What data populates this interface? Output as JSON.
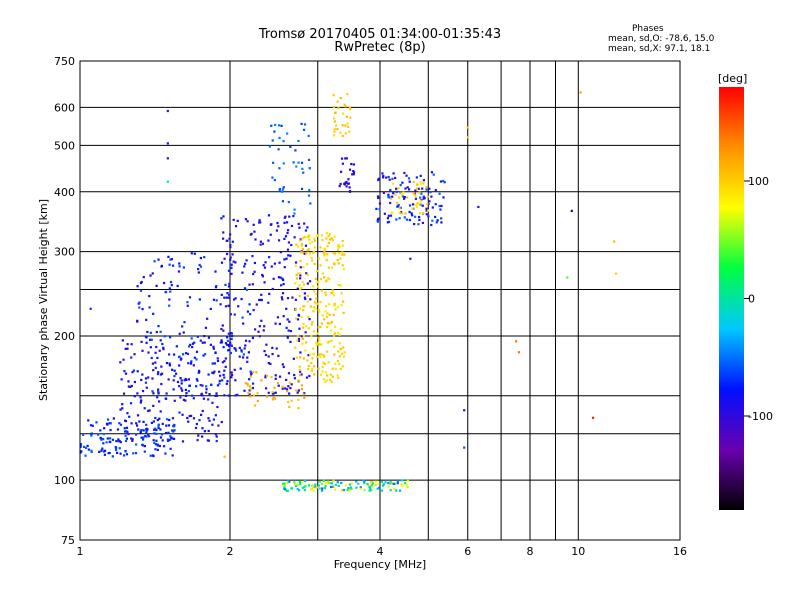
{
  "header": {
    "title_line1": "Tromsø 20170405 01:34:00-01:35:43",
    "title_line2": "RwPretec (8p)"
  },
  "stats": {
    "heading": "Phases",
    "o_line": "mean, sd,O: -78.6, 15.0",
    "x_line": "mean, sd,X:  97.1, 18.1"
  },
  "colorbar": {
    "label": "[deg]",
    "ticks": [
      {
        "value": 100,
        "label": "100"
      },
      {
        "value": 0,
        "label": "0"
      },
      {
        "value": -100,
        "label": "-100"
      }
    ],
    "range": [
      -180,
      180
    ],
    "stops": [
      "#000000",
      "#6a00b0",
      "#0010ff",
      "#00c8ff",
      "#00ff40",
      "#ffff00",
      "#ff9000",
      "#ff0000"
    ]
  },
  "chart_data": {
    "type": "scatter",
    "xlabel": "Frequency [MHz]",
    "ylabel": "Stationary phase Virtual Height [km]",
    "xscale": "log",
    "yscale": "log",
    "xlim": [
      1,
      16
    ],
    "ylim": [
      75,
      750
    ],
    "grid": true,
    "x_ticks": [
      {
        "value": 1,
        "label": "1"
      },
      {
        "value": 2,
        "label": "2"
      },
      {
        "value": 4,
        "label": "4"
      },
      {
        "value": 6,
        "label": "6"
      },
      {
        "value": 8,
        "label": "8"
      },
      {
        "value": 10,
        "label": "10"
      },
      {
        "value": 16,
        "label": "16"
      }
    ],
    "x_grid": [
      1,
      2,
      3,
      4,
      5,
      6,
      7,
      8,
      9,
      10,
      16
    ],
    "y_ticks": [
      {
        "value": 75,
        "label": "75"
      },
      {
        "value": 100,
        "label": "100"
      },
      {
        "value": 200,
        "label": "200"
      },
      {
        "value": 300,
        "label": "300"
      },
      {
        "value": 400,
        "label": "400"
      },
      {
        "value": 500,
        "label": "500"
      },
      {
        "value": 600,
        "label": "600"
      },
      {
        "value": 750,
        "label": "750"
      }
    ],
    "y_grid": [
      75,
      100,
      125,
      150,
      200,
      250,
      300,
      400,
      500,
      600,
      750
    ],
    "color_value": "phase [deg]",
    "clusters": [
      {
        "desc": "O-trace low",
        "x": [
          1.0,
          1.55
        ],
        "y": [
          112,
          135
        ],
        "phase": -70,
        "jitter": 18,
        "n": 150
      },
      {
        "desc": "O-trace mid",
        "x": [
          1.2,
          1.95
        ],
        "y": [
          120,
          200
        ],
        "phase": -85,
        "jitter": 18,
        "n": 200
      },
      {
        "desc": "O-trace spread",
        "x": [
          1.3,
          2.2
        ],
        "y": [
          150,
          300
        ],
        "phase": -75,
        "jitter": 20,
        "n": 160
      },
      {
        "desc": "O-trace upper",
        "x": [
          1.9,
          2.9
        ],
        "y": [
          150,
          360
        ],
        "phase": -90,
        "jitter": 20,
        "n": 260
      },
      {
        "desc": "O-trace top",
        "x": [
          2.4,
          2.9
        ],
        "y": [
          360,
          560
        ],
        "phase": -55,
        "jitter": 12,
        "n": 45
      },
      {
        "desc": "X-trace",
        "x": [
          2.7,
          3.4
        ],
        "y": [
          160,
          330
        ],
        "phase": 97,
        "jitter": 12,
        "n": 260
      },
      {
        "desc": "X-trace low",
        "x": [
          2.15,
          2.85
        ],
        "y": [
          140,
          170
        ],
        "phase": 110,
        "jitter": 10,
        "n": 40
      },
      {
        "desc": "X-trace top",
        "x": [
          3.2,
          3.5
        ],
        "y": [
          520,
          640
        ],
        "phase": 100,
        "jitter": 10,
        "n": 30
      },
      {
        "desc": "F2 O-cluster",
        "x": [
          3.3,
          3.55
        ],
        "y": [
          400,
          470
        ],
        "phase": -95,
        "jitter": 10,
        "n": 25
      },
      {
        "desc": "F2 cluster",
        "x": [
          3.9,
          5.4
        ],
        "y": [
          340,
          440
        ],
        "phase": -80,
        "jitter": 30,
        "n": 120
      },
      {
        "desc": "F2 X cluster",
        "x": [
          4.2,
          5.0
        ],
        "y": [
          360,
          420
        ],
        "phase": 95,
        "jitter": 15,
        "n": 40
      },
      {
        "desc": "Es layer",
        "x": [
          2.55,
          4.55
        ],
        "y": [
          95,
          100
        ],
        "phase": 20,
        "jitter": 80,
        "n": 130
      }
    ],
    "points": [
      {
        "x": 1.5,
        "y": 590,
        "phase": -110
      },
      {
        "x": 1.5,
        "y": 505,
        "phase": -100
      },
      {
        "x": 1.5,
        "y": 470,
        "phase": -110
      },
      {
        "x": 1.5,
        "y": 420,
        "phase": 10
      },
      {
        "x": 1.05,
        "y": 228,
        "phase": -70
      },
      {
        "x": 1.95,
        "y": 112,
        "phase": 110
      },
      {
        "x": 4.6,
        "y": 290,
        "phase": -110
      },
      {
        "x": 5.9,
        "y": 140,
        "phase": -100
      },
      {
        "x": 5.9,
        "y": 117,
        "phase": -60
      },
      {
        "x": 6.0,
        "y": 545,
        "phase": 100
      },
      {
        "x": 6.0,
        "y": 520,
        "phase": 100
      },
      {
        "x": 6.3,
        "y": 372,
        "phase": -100
      },
      {
        "x": 7.5,
        "y": 195,
        "phase": 140
      },
      {
        "x": 7.6,
        "y": 185,
        "phase": 140
      },
      {
        "x": 9.5,
        "y": 265,
        "phase": 40
      },
      {
        "x": 9.7,
        "y": 365,
        "phase": -150
      },
      {
        "x": 10.1,
        "y": 645,
        "phase": 120
      },
      {
        "x": 10.7,
        "y": 135,
        "phase": 170
      },
      {
        "x": 11.8,
        "y": 315,
        "phase": 110
      },
      {
        "x": 11.9,
        "y": 270,
        "phase": 100
      }
    ]
  }
}
